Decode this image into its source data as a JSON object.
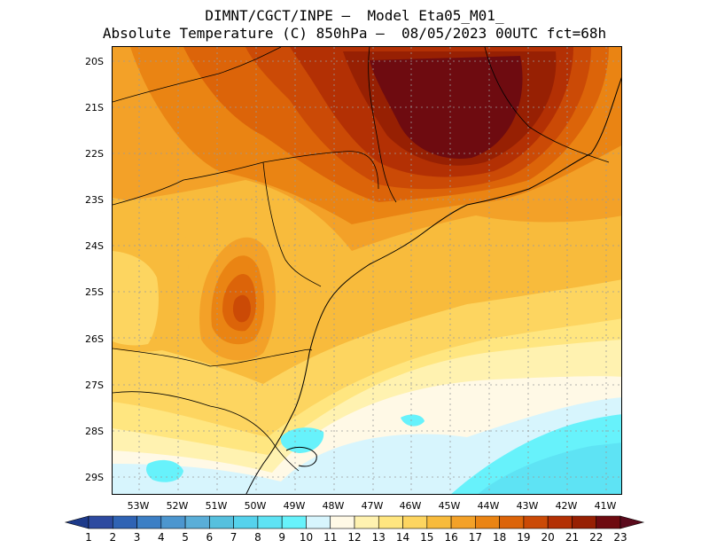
{
  "title": {
    "line1": "DIMNT/CGCT/INPE –  Model Eta05_M01_",
    "line2": "Absolute Temperature (C) 850hPa –  08/05/2023 00UTC fct=68h"
  },
  "map": {
    "lat_labels": [
      "20S",
      "21S",
      "22S",
      "23S",
      "24S",
      "25S",
      "26S",
      "27S",
      "28S",
      "29S"
    ],
    "lon_labels": [
      "53W",
      "52W",
      "51W",
      "50W",
      "49W",
      "48W",
      "47W",
      "46W",
      "45W",
      "44W",
      "43W",
      "42W",
      "41W"
    ]
  },
  "colorbar": {
    "labels": [
      "1",
      "2",
      "3",
      "4",
      "5",
      "6",
      "7",
      "8",
      "9",
      "10",
      "11",
      "12",
      "13",
      "14",
      "15",
      "16",
      "17",
      "18",
      "19",
      "20",
      "21",
      "22",
      "23"
    ],
    "colors": [
      "#2d4aa0",
      "#2f63b4",
      "#3c7fc5",
      "#4c96cf",
      "#5aaed8",
      "#56c0de",
      "#55d2ec",
      "#5ee3f4",
      "#67f2fb",
      "#d7f5fd",
      "#fff9e6",
      "#fff2b0",
      "#ffe680",
      "#fdd560",
      "#f8bb3c",
      "#f3a128",
      "#ea8413",
      "#dc6409",
      "#cb4a06",
      "#b33004",
      "#972003",
      "#6e0b10"
    ],
    "under_color": "#1d3a8a",
    "over_color": "#5a0a1c"
  }
}
